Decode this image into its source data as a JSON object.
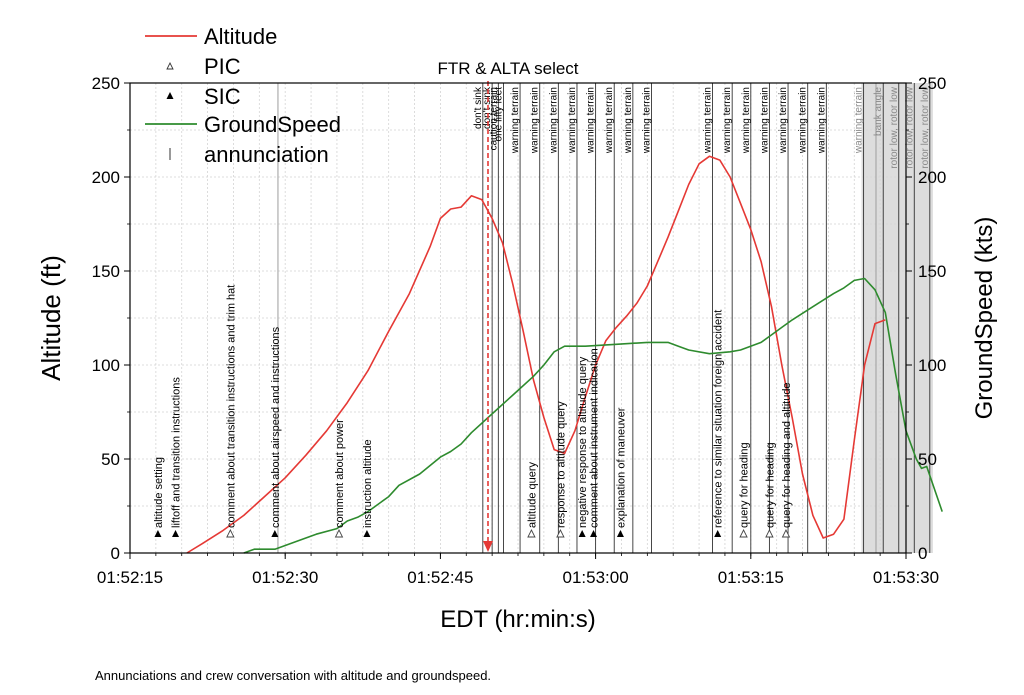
{
  "caption": "Annunciations and crew conversation with altitude and groundspeed.",
  "chart_data": {
    "type": "line",
    "xlabel": "EDT (hr:min:s)",
    "ylabel_left": "Altitude (ft)",
    "ylabel_right": "GroundSpeed (kts)",
    "xlim": [
      0,
      75
    ],
    "ylim_left": [
      0,
      250
    ],
    "ylim_right": [
      0,
      250
    ],
    "x_ticks": [
      {
        "x": 0,
        "label": "01:52:15"
      },
      {
        "x": 15,
        "label": "01:52:30"
      },
      {
        "x": 30,
        "label": "01:52:45"
      },
      {
        "x": 45,
        "label": "01:53:00"
      },
      {
        "x": 60,
        "label": "01:53:15"
      },
      {
        "x": 75,
        "label": "01:53:30"
      }
    ],
    "y_ticks_left": [
      0,
      50,
      100,
      150,
      200,
      250
    ],
    "y_ticks_right": [
      0,
      50,
      100,
      150,
      200,
      250
    ],
    "grid": true,
    "legend": [
      {
        "label": "Altitude",
        "kind": "line",
        "color": "#e53935"
      },
      {
        "label": "PIC",
        "kind": "open-triangle",
        "color": "#333333"
      },
      {
        "label": "SIC",
        "kind": "filled-triangle",
        "color": "#000000"
      },
      {
        "label": "GroundSpeed",
        "kind": "line",
        "color": "#2e8b2e"
      },
      {
        "label": "annunciation",
        "kind": "vline",
        "color": "#333333"
      }
    ],
    "legend_placement": "top-left",
    "series": [
      {
        "name": "Altitude",
        "axis": "left",
        "color": "#e53935",
        "points": [
          [
            5.5,
            0
          ],
          [
            7,
            5
          ],
          [
            9,
            12
          ],
          [
            11,
            20
          ],
          [
            13,
            30
          ],
          [
            15,
            40
          ],
          [
            17,
            52
          ],
          [
            19,
            65
          ],
          [
            21,
            80
          ],
          [
            23,
            97
          ],
          [
            25,
            118
          ],
          [
            27,
            138
          ],
          [
            29,
            163
          ],
          [
            30,
            178
          ],
          [
            31,
            183
          ],
          [
            32,
            184
          ],
          [
            33,
            190
          ],
          [
            34,
            188
          ],
          [
            35,
            178
          ],
          [
            36,
            165
          ],
          [
            37,
            143
          ],
          [
            38,
            118
          ],
          [
            39,
            92
          ],
          [
            40,
            72
          ],
          [
            41,
            55
          ],
          [
            42,
            53
          ],
          [
            43,
            65
          ],
          [
            44,
            83
          ],
          [
            45,
            100
          ],
          [
            46,
            113
          ],
          [
            47,
            120
          ],
          [
            48,
            126
          ],
          [
            49,
            133
          ],
          [
            50,
            142
          ],
          [
            51,
            155
          ],
          [
            52,
            168
          ],
          [
            53,
            182
          ],
          [
            54,
            196
          ],
          [
            55,
            207
          ],
          [
            56,
            211
          ],
          [
            57,
            209
          ],
          [
            58,
            200
          ],
          [
            59,
            186
          ],
          [
            60,
            172
          ],
          [
            61,
            155
          ],
          [
            62,
            131
          ],
          [
            63,
            100
          ],
          [
            64,
            72
          ],
          [
            65,
            42
          ],
          [
            66,
            20
          ],
          [
            67,
            8
          ],
          [
            68,
            10
          ],
          [
            69,
            18
          ],
          [
            70,
            60
          ],
          [
            71,
            100
          ],
          [
            72,
            122
          ],
          [
            73,
            124
          ]
        ]
      },
      {
        "name": "GroundSpeed",
        "axis": "right",
        "color": "#2e8b2e",
        "points": [
          [
            11,
            0
          ],
          [
            12,
            2
          ],
          [
            14,
            2
          ],
          [
            16,
            6
          ],
          [
            18,
            10
          ],
          [
            20,
            13
          ],
          [
            21,
            17
          ],
          [
            22,
            19
          ],
          [
            23,
            22
          ],
          [
            24,
            26
          ],
          [
            25,
            30
          ],
          [
            26,
            36
          ],
          [
            28,
            42
          ],
          [
            30,
            51
          ],
          [
            31,
            54
          ],
          [
            32,
            58
          ],
          [
            33,
            64
          ],
          [
            35,
            74
          ],
          [
            37,
            84
          ],
          [
            39,
            94
          ],
          [
            40,
            100
          ],
          [
            41,
            107
          ],
          [
            42,
            110
          ],
          [
            44,
            110
          ],
          [
            47,
            111
          ],
          [
            50,
            112
          ],
          [
            52,
            112
          ],
          [
            53,
            110
          ],
          [
            54,
            108
          ],
          [
            56,
            106
          ],
          [
            58,
            107
          ],
          [
            59,
            108
          ],
          [
            61,
            112
          ],
          [
            62,
            116
          ],
          [
            63,
            120
          ],
          [
            64,
            124
          ],
          [
            66,
            131
          ],
          [
            68,
            138
          ],
          [
            69,
            141
          ],
          [
            70,
            145
          ],
          [
            71,
            146
          ],
          [
            72,
            140
          ],
          [
            73,
            128
          ],
          [
            74,
            95
          ],
          [
            75,
            65
          ],
          [
            76,
            50
          ],
          [
            76.5,
            45
          ],
          [
            77,
            46
          ],
          [
            77.5,
            38
          ],
          [
            78.5,
            22
          ]
        ]
      }
    ],
    "annunciation_lines": [
      {
        "x": 34.1,
        "label": "don't sink"
      },
      {
        "x": 35.0,
        "label": "don't sink"
      },
      {
        "x": 35.6,
        "label": "caution terrain"
      },
      {
        "x": 36.1,
        "label": "one fifty feet"
      },
      {
        "x": 37.7,
        "label": "warning terrain"
      },
      {
        "x": 39.6,
        "label": "warning terrain"
      },
      {
        "x": 41.4,
        "label": "warning terrain"
      },
      {
        "x": 43.2,
        "label": "warning terrain"
      },
      {
        "x": 45.0,
        "label": "warning terrain"
      },
      {
        "x": 46.8,
        "label": "warning terrain"
      },
      {
        "x": 48.6,
        "label": "warning terrain"
      },
      {
        "x": 50.4,
        "label": "warning terrain"
      },
      {
        "x": 56.3,
        "label": "warning terrain"
      },
      {
        "x": 58.2,
        "label": "warning terrain"
      },
      {
        "x": 60.0,
        "label": "warning terrain"
      },
      {
        "x": 61.8,
        "label": "warning terrain"
      },
      {
        "x": 63.6,
        "label": "warning terrain"
      },
      {
        "x": 65.5,
        "label": "warning terrain"
      },
      {
        "x": 67.3,
        "label": "warning terrain"
      },
      {
        "x": 70.9,
        "label": "warning terrain"
      },
      {
        "x": 72.8,
        "label": "bank angle"
      },
      {
        "x": 74.3,
        "label": "rotor low, rotor low"
      },
      {
        "x": 75.8,
        "label": "rotor low, rotor low"
      },
      {
        "x": 77.3,
        "label": "rotor low, rotor low"
      }
    ],
    "shaded_region": {
      "x_start": 70.7,
      "x_end": 77.6,
      "color": "#dddddd"
    },
    "grey_lines": [
      14.3,
      72.1
    ],
    "event_line": {
      "x": 34.6,
      "label": "FTR & ALTA select",
      "color": "#e53935"
    },
    "crew_events": [
      {
        "x": 2.7,
        "speaker": "SIC",
        "label": "altitude setting"
      },
      {
        "x": 4.4,
        "speaker": "SIC",
        "label": "liftoff and transition instructions"
      },
      {
        "x": 9.7,
        "speaker": "PIC",
        "label": "comment about transition instructions and trim hat"
      },
      {
        "x": 14.0,
        "speaker": "SIC",
        "label": "comment about airspeed and instructions"
      },
      {
        "x": 20.2,
        "speaker": "PIC",
        "label": "comment about power"
      },
      {
        "x": 22.9,
        "speaker": "SIC",
        "label": "instruction altitude"
      },
      {
        "x": 38.8,
        "speaker": "PIC",
        "label": "altitude query"
      },
      {
        "x": 41.6,
        "speaker": "PIC",
        "label": "response to altitude query"
      },
      {
        "x": 43.7,
        "speaker": "SIC",
        "label": "negative response to altitude query"
      },
      {
        "x": 44.8,
        "speaker": "SIC",
        "label": "comment about instrument indication"
      },
      {
        "x": 47.4,
        "speaker": "SIC",
        "label": "explanation of maneuver"
      },
      {
        "x": 56.8,
        "speaker": "SIC",
        "label": "reference to similar situation foreign accident"
      },
      {
        "x": 59.3,
        "speaker": "PIC",
        "label": "query for heading"
      },
      {
        "x": 61.8,
        "speaker": "PIC",
        "label": "query for heading"
      },
      {
        "x": 63.4,
        "speaker": "PIC",
        "label": "query for heading and altitude"
      }
    ]
  }
}
